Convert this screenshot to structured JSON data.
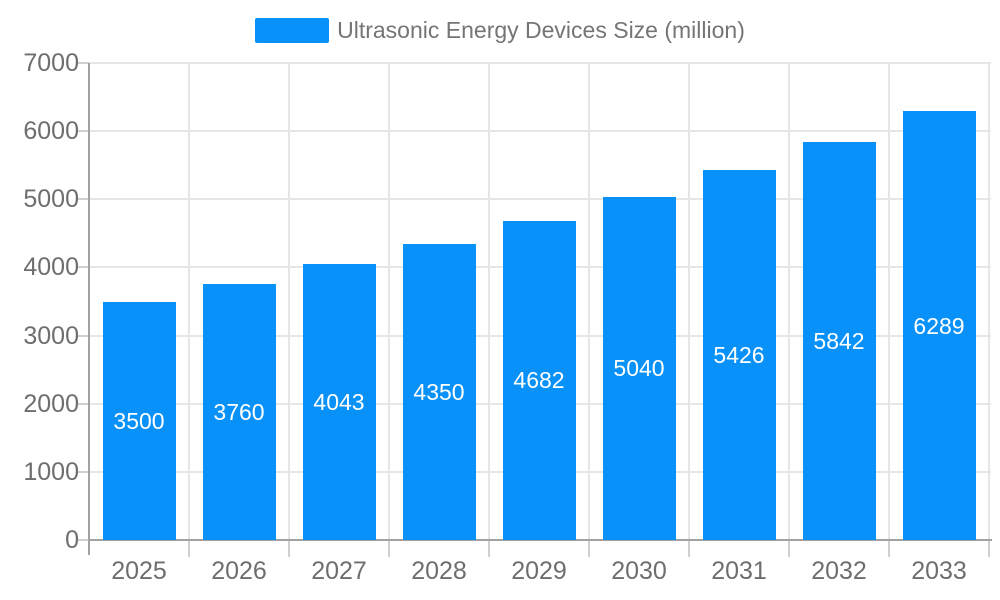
{
  "legend": {
    "items": [
      {
        "label": "Ultrasonic Energy Devices Size (million)",
        "color": "#0891f8"
      }
    ]
  },
  "chart_data": {
    "type": "bar",
    "title": "Ultrasonic Energy Devices Size (million)",
    "categories": [
      "2025",
      "2026",
      "2027",
      "2028",
      "2029",
      "2030",
      "2031",
      "2032",
      "2033"
    ],
    "series": [
      {
        "name": "Ultrasonic Energy Devices Size (million)",
        "values": [
          3500,
          3760,
          4043,
          4350,
          4682,
          5040,
          5426,
          5842,
          6289
        ],
        "color": "#0891f8"
      }
    ],
    "xlabel": "",
    "ylabel": "",
    "ylim": [
      0,
      7000
    ],
    "yticks": [
      0,
      1000,
      2000,
      3000,
      4000,
      5000,
      6000,
      7000
    ],
    "grid": true,
    "legend_position": "top",
    "bar_labels": true,
    "bar_label_color": "#ffffff",
    "colors": {
      "bar": "#0891f8",
      "axis_text": "#6e6e6e",
      "legend_text": "#757575",
      "gridline": "#e6e6e6",
      "axis_line": "#a2a2a2",
      "tick": "#cfcfcf",
      "background": "#ffffff"
    }
  }
}
